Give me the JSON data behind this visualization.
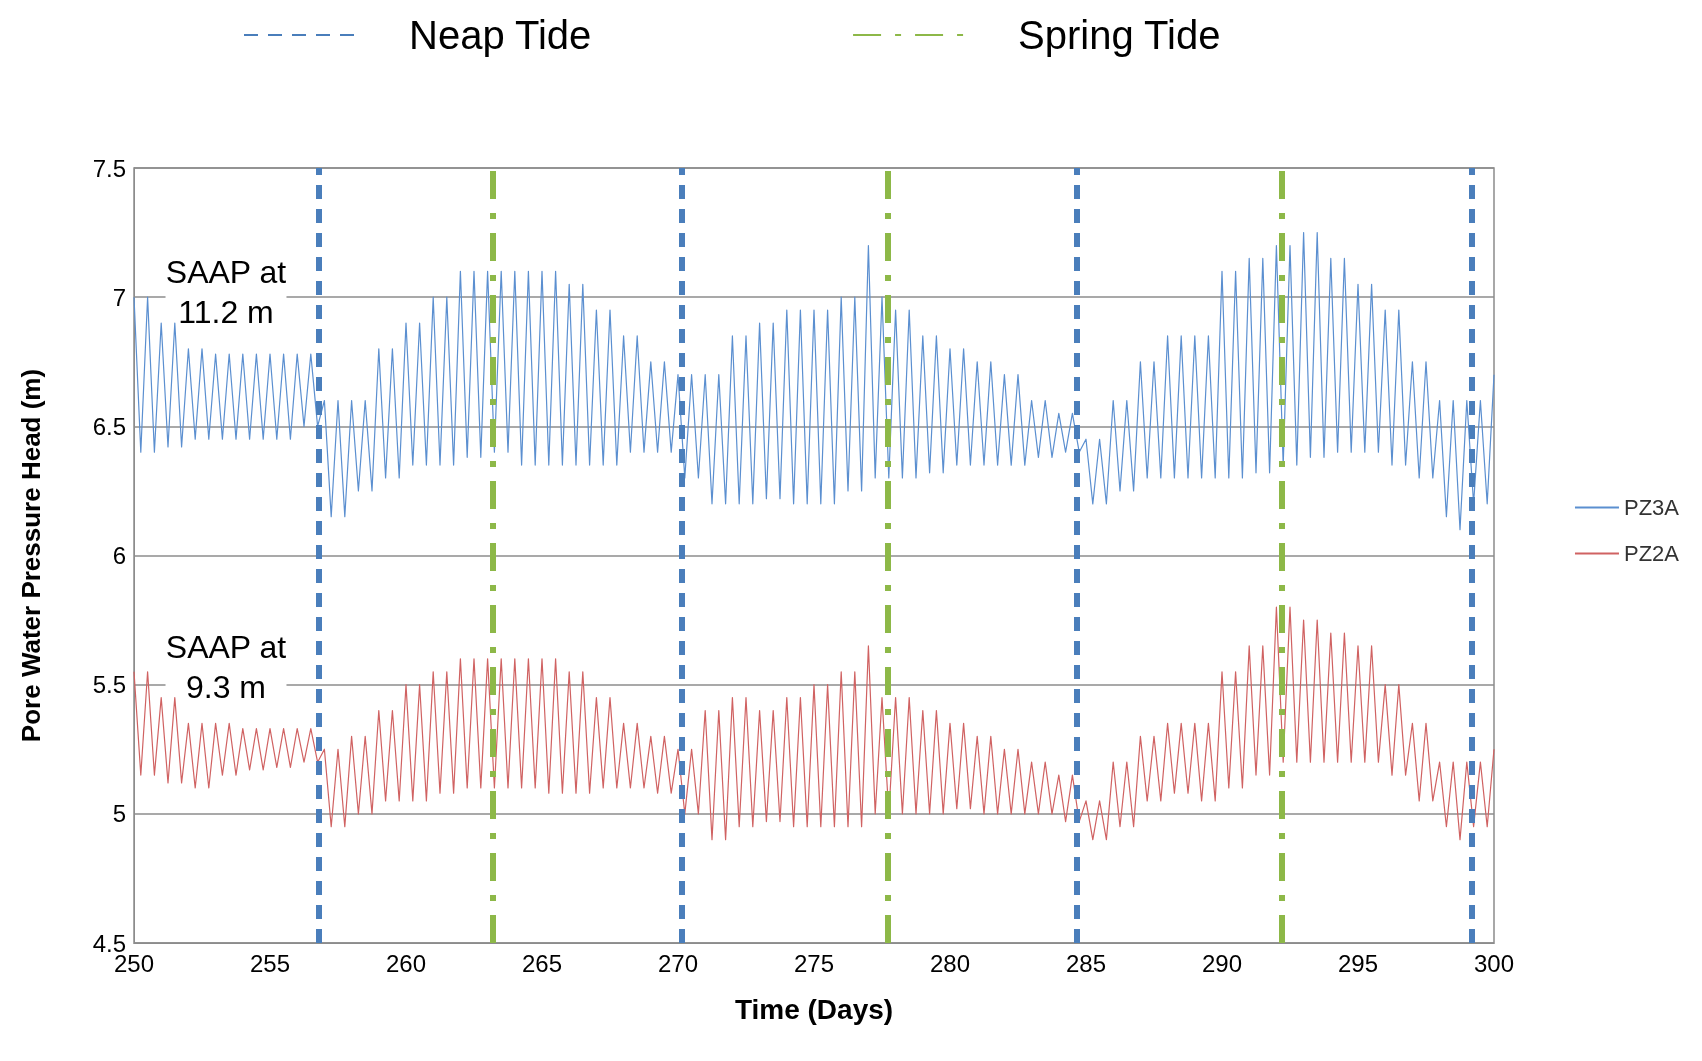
{
  "chart_data": {
    "type": "line",
    "xlabel": "Time (Days)",
    "ylabel": "Pore Water Pressure Head (m)",
    "xlim": [
      250,
      300
    ],
    "xticks": [
      250,
      255,
      260,
      265,
      270,
      275,
      280,
      285,
      290,
      295,
      300
    ],
    "ylim": [
      4.5,
      7.5
    ],
    "yticks": [
      4.5,
      5,
      5.5,
      6,
      6.5,
      7,
      7.5
    ],
    "grid": "y",
    "legend": "right",
    "marker": "none",
    "line_style": "solid",
    "x": [
      250,
      250.25,
      250.5,
      250.75,
      251,
      251.25,
      251.5,
      251.75,
      252,
      252.25,
      252.5,
      252.75,
      253,
      253.25,
      253.5,
      253.75,
      254,
      254.25,
      254.5,
      254.75,
      255,
      255.25,
      255.5,
      255.75,
      256,
      256.25,
      256.5,
      256.75,
      257,
      257.25,
      257.5,
      257.75,
      258,
      258.25,
      258.5,
      258.75,
      259,
      259.25,
      259.5,
      259.75,
      260,
      260.25,
      260.5,
      260.75,
      261,
      261.25,
      261.5,
      261.75,
      262,
      262.25,
      262.5,
      262.75,
      263,
      263.25,
      263.5,
      263.75,
      264,
      264.25,
      264.5,
      264.75,
      265,
      265.25,
      265.5,
      265.75,
      266,
      266.25,
      266.5,
      266.75,
      267,
      267.25,
      267.5,
      267.75,
      268,
      268.25,
      268.5,
      268.75,
      269,
      269.25,
      269.5,
      269.75,
      270,
      270.25,
      270.5,
      270.75,
      271,
      271.25,
      271.5,
      271.75,
      272,
      272.25,
      272.5,
      272.75,
      273,
      273.25,
      273.5,
      273.75,
      274,
      274.25,
      274.5,
      274.75,
      275,
      275.25,
      275.5,
      275.75,
      276,
      276.25,
      276.5,
      276.75,
      277,
      277.25,
      277.5,
      277.75,
      278,
      278.25,
      278.5,
      278.75,
      279,
      279.25,
      279.5,
      279.75,
      280,
      280.25,
      280.5,
      280.75,
      281,
      281.25,
      281.5,
      281.75,
      282,
      282.25,
      282.5,
      282.75,
      283,
      283.25,
      283.5,
      283.75,
      284,
      284.25,
      284.5,
      284.75,
      285,
      285.25,
      285.5,
      285.75,
      286,
      286.25,
      286.5,
      286.75,
      287,
      287.25,
      287.5,
      287.75,
      288,
      288.25,
      288.5,
      288.75,
      289,
      289.25,
      289.5,
      289.75,
      290,
      290.25,
      290.5,
      290.75,
      291,
      291.25,
      291.5,
      291.75,
      292,
      292.25,
      292.5,
      292.75,
      293,
      293.25,
      293.5,
      293.75,
      294,
      294.25,
      294.5,
      294.75,
      295,
      295.25,
      295.5,
      295.75,
      296,
      296.25,
      296.5,
      296.75,
      297,
      297.25,
      297.5,
      297.75,
      298,
      298.25,
      298.5,
      298.75,
      299,
      299.25,
      299.5,
      299.75,
      300
    ],
    "series": [
      {
        "name": "PZ3A",
        "color": "#5b8fd0",
        "values": [
          7.0,
          6.4,
          7.0,
          6.4,
          6.9,
          6.42,
          6.9,
          6.42,
          6.8,
          6.45,
          6.8,
          6.45,
          6.78,
          6.45,
          6.78,
          6.45,
          6.78,
          6.45,
          6.78,
          6.45,
          6.78,
          6.45,
          6.78,
          6.45,
          6.78,
          6.5,
          6.78,
          6.5,
          6.6,
          6.15,
          6.6,
          6.15,
          6.6,
          6.25,
          6.6,
          6.25,
          6.8,
          6.3,
          6.8,
          6.3,
          6.9,
          6.35,
          6.9,
          6.35,
          7.0,
          6.35,
          7.0,
          6.35,
          7.1,
          6.38,
          7.1,
          6.38,
          7.1,
          6.4,
          7.1,
          6.4,
          7.1,
          6.35,
          7.1,
          6.35,
          7.1,
          6.35,
          7.1,
          6.35,
          7.05,
          6.35,
          7.05,
          6.35,
          6.95,
          6.35,
          6.95,
          6.35,
          6.85,
          6.4,
          6.85,
          6.4,
          6.75,
          6.4,
          6.75,
          6.4,
          6.7,
          6.3,
          6.7,
          6.3,
          6.7,
          6.2,
          6.7,
          6.2,
          6.85,
          6.2,
          6.85,
          6.2,
          6.9,
          6.22,
          6.9,
          6.22,
          6.95,
          6.2,
          6.95,
          6.2,
          6.95,
          6.2,
          6.95,
          6.2,
          7.0,
          6.25,
          7.0,
          6.25,
          7.2,
          6.3,
          7.0,
          6.3,
          6.95,
          6.3,
          6.95,
          6.3,
          6.85,
          6.32,
          6.85,
          6.32,
          6.8,
          6.35,
          6.8,
          6.35,
          6.75,
          6.35,
          6.75,
          6.35,
          6.7,
          6.35,
          6.7,
          6.35,
          6.6,
          6.38,
          6.6,
          6.38,
          6.55,
          6.4,
          6.55,
          6.4,
          6.45,
          6.2,
          6.45,
          6.2,
          6.6,
          6.25,
          6.6,
          6.25,
          6.75,
          6.3,
          6.75,
          6.3,
          6.85,
          6.3,
          6.85,
          6.3,
          6.85,
          6.3,
          6.85,
          6.3,
          7.1,
          6.3,
          7.1,
          6.3,
          7.15,
          6.32,
          7.15,
          6.32,
          7.2,
          6.35,
          7.2,
          6.35,
          7.25,
          6.38,
          7.25,
          6.38,
          7.15,
          6.4,
          7.15,
          6.4,
          7.05,
          6.4,
          7.05,
          6.4,
          6.95,
          6.35,
          6.95,
          6.35,
          6.75,
          6.3,
          6.75,
          6.3,
          6.6,
          6.15,
          6.6,
          6.1,
          6.6,
          6.2,
          6.6,
          6.2,
          6.7
        ]
      },
      {
        "name": "PZ2A",
        "color": "#d06262",
        "values": [
          5.55,
          5.15,
          5.55,
          5.15,
          5.45,
          5.12,
          5.45,
          5.12,
          5.35,
          5.1,
          5.35,
          5.1,
          5.35,
          5.15,
          5.35,
          5.15,
          5.33,
          5.17,
          5.33,
          5.17,
          5.33,
          5.18,
          5.33,
          5.18,
          5.33,
          5.2,
          5.33,
          5.2,
          5.25,
          4.95,
          5.25,
          4.95,
          5.3,
          5.0,
          5.3,
          5.0,
          5.4,
          5.05,
          5.4,
          5.05,
          5.5,
          5.05,
          5.5,
          5.05,
          5.55,
          5.08,
          5.55,
          5.08,
          5.6,
          5.1,
          5.6,
          5.1,
          5.6,
          5.1,
          5.6,
          5.1,
          5.6,
          5.1,
          5.6,
          5.1,
          5.6,
          5.08,
          5.6,
          5.08,
          5.55,
          5.08,
          5.55,
          5.08,
          5.45,
          5.1,
          5.45,
          5.1,
          5.35,
          5.1,
          5.35,
          5.1,
          5.3,
          5.08,
          5.3,
          5.08,
          5.25,
          5.0,
          5.25,
          5.0,
          5.4,
          4.9,
          5.4,
          4.9,
          5.45,
          4.95,
          5.45,
          4.95,
          5.4,
          4.97,
          5.4,
          4.97,
          5.45,
          4.95,
          5.45,
          4.95,
          5.5,
          4.95,
          5.5,
          4.95,
          5.55,
          4.95,
          5.55,
          4.95,
          5.65,
          5.0,
          5.45,
          5.0,
          5.45,
          5.0,
          5.45,
          5.0,
          5.4,
          5.0,
          5.4,
          5.0,
          5.35,
          5.02,
          5.35,
          5.02,
          5.3,
          5.0,
          5.3,
          5.0,
          5.25,
          5.0,
          5.25,
          5.0,
          5.2,
          5.0,
          5.2,
          5.0,
          5.15,
          4.97,
          5.15,
          4.97,
          5.05,
          4.9,
          5.05,
          4.9,
          5.2,
          4.95,
          5.2,
          4.95,
          5.3,
          5.05,
          5.3,
          5.05,
          5.35,
          5.08,
          5.35,
          5.08,
          5.35,
          5.05,
          5.35,
          5.05,
          5.55,
          5.1,
          5.55,
          5.1,
          5.65,
          5.15,
          5.65,
          5.15,
          5.8,
          5.2,
          5.8,
          5.2,
          5.75,
          5.2,
          5.75,
          5.2,
          5.7,
          5.2,
          5.7,
          5.2,
          5.65,
          5.2,
          5.65,
          5.2,
          5.5,
          5.15,
          5.5,
          5.15,
          5.35,
          5.05,
          5.35,
          5.05,
          5.2,
          4.95,
          5.2,
          4.9,
          5.2,
          4.95,
          5.2,
          4.95,
          5.25
        ]
      }
    ],
    "ref_lines": [
      {
        "axis": "x",
        "value": 256.8,
        "label": "Neap Tide",
        "color": "#4a7ebb",
        "line_style": "dashed"
      },
      {
        "axis": "x",
        "value": 263.2,
        "label": "Spring Tide",
        "color": "#8db848",
        "line_style": "dashdot"
      },
      {
        "axis": "x",
        "value": 270.15,
        "color": "#4a7ebb",
        "line_style": "dashed"
      },
      {
        "axis": "x",
        "value": 277.7,
        "color": "#8db848",
        "line_style": "dashdot"
      },
      {
        "axis": "x",
        "value": 284.65,
        "color": "#4a7ebb",
        "line_style": "dashed"
      },
      {
        "axis": "x",
        "value": 292.2,
        "color": "#8db848",
        "line_style": "dashdot"
      },
      {
        "axis": "x",
        "value": 299.2,
        "color": "#4a7ebb",
        "line_style": "dashed"
      }
    ],
    "annotations": [
      "SAAP at\n11.2 m",
      "SAAP at\n9.3 m"
    ]
  }
}
